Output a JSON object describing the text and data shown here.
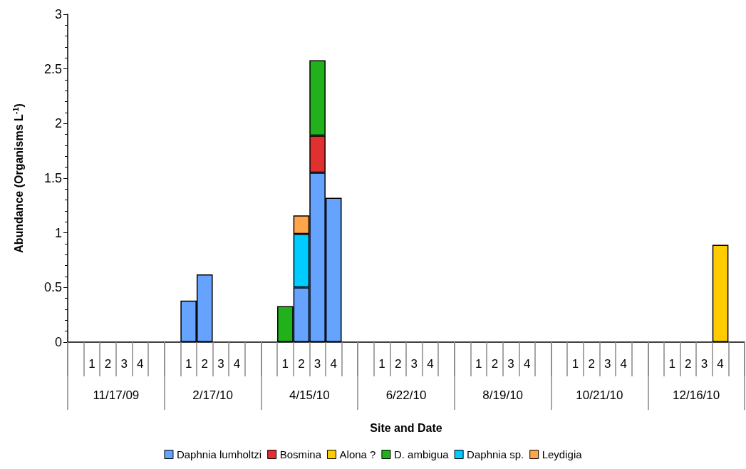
{
  "chart_data": {
    "type": "bar",
    "stacked": true,
    "xlabel": "Site and Date",
    "ylabel": "Abundance (Organisms L$^{-1}$)",
    "categories": [
      null,
      "1",
      "2",
      "3",
      "4",
      null,
      null,
      "1",
      "2",
      "3",
      "4",
      null,
      null,
      "1",
      "2",
      "3",
      "4",
      null,
      null,
      "1",
      "2",
      "3",
      "4",
      null,
      null,
      "1",
      "2",
      "3",
      "4",
      null,
      null,
      "1",
      "2",
      "3",
      "4",
      null,
      null,
      "1",
      "2",
      "3",
      "4",
      null
    ],
    "annotations": [
      "11/17/09",
      "2/17/10",
      "4/15/10",
      "6/22/10",
      "8/19/10",
      "10/21/10",
      "12/16/10"
    ],
    "series": [
      {
        "name": "Daphnia lumholtzi",
        "color": "#66a3ff",
        "values": [
          null,
          null,
          null,
          null,
          null,
          null,
          null,
          0.38,
          0.62,
          null,
          null,
          null,
          null,
          null,
          0.5,
          1.55,
          1.32,
          null,
          null,
          null,
          null,
          null,
          null,
          null,
          null,
          null,
          null,
          null,
          null,
          null,
          null,
          null,
          null,
          null,
          null,
          null,
          null,
          null,
          null,
          null,
          null,
          null
        ]
      },
      {
        "name": "Bosmina",
        "color": "#e03030",
        "values": [
          null,
          null,
          null,
          null,
          null,
          null,
          null,
          null,
          null,
          null,
          null,
          null,
          null,
          null,
          null,
          0.34,
          null,
          null,
          null,
          null,
          null,
          null,
          null,
          null,
          null,
          null,
          null,
          null,
          null,
          null,
          null,
          null,
          null,
          null,
          null,
          null,
          null,
          null,
          null,
          null,
          null,
          null
        ]
      },
      {
        "name": "Alona ?",
        "color": "#ffcc00",
        "values": [
          null,
          null,
          null,
          null,
          null,
          null,
          null,
          null,
          null,
          null,
          null,
          null,
          null,
          null,
          null,
          null,
          null,
          null,
          null,
          null,
          null,
          null,
          null,
          null,
          null,
          null,
          null,
          null,
          null,
          null,
          null,
          null,
          null,
          null,
          null,
          null,
          null,
          null,
          null,
          null,
          0.89,
          null
        ]
      },
      {
        "name": "D. ambigua",
        "color": "#21b21b",
        "values": [
          null,
          null,
          null,
          null,
          null,
          null,
          null,
          null,
          null,
          null,
          null,
          null,
          null,
          0.33,
          null,
          0.69,
          null,
          null,
          null,
          null,
          null,
          null,
          null,
          null,
          null,
          null,
          null,
          null,
          null,
          null,
          null,
          null,
          null,
          null,
          null,
          null,
          null,
          null,
          null,
          null,
          null,
          null
        ]
      },
      {
        "name": "Daphnia sp.",
        "color": "#00ccff",
        "values": [
          null,
          null,
          null,
          null,
          null,
          null,
          null,
          null,
          null,
          null,
          null,
          null,
          null,
          null,
          0.49,
          null,
          null,
          null,
          null,
          null,
          null,
          null,
          null,
          null,
          null,
          null,
          null,
          null,
          null,
          null,
          null,
          null,
          null,
          null,
          null,
          null,
          null,
          null,
          null,
          null,
          null,
          null
        ]
      },
      {
        "name": "Leydigia",
        "color": "#ffa64d",
        "values": [
          null,
          null,
          null,
          null,
          null,
          null,
          null,
          null,
          null,
          null,
          null,
          null,
          null,
          null,
          0.17,
          null,
          null,
          null,
          null,
          null,
          null,
          null,
          null,
          null,
          null,
          null,
          null,
          null,
          null,
          null,
          null,
          null,
          null,
          null,
          null,
          null,
          null,
          null,
          null,
          null,
          null,
          null
        ]
      }
    ],
    "ylim": [
      0,
      3
    ],
    "yticks": [
      0,
      0.5,
      1,
      1.5,
      2,
      2.5,
      3
    ],
    "grid": false,
    "legend": "bottom"
  }
}
